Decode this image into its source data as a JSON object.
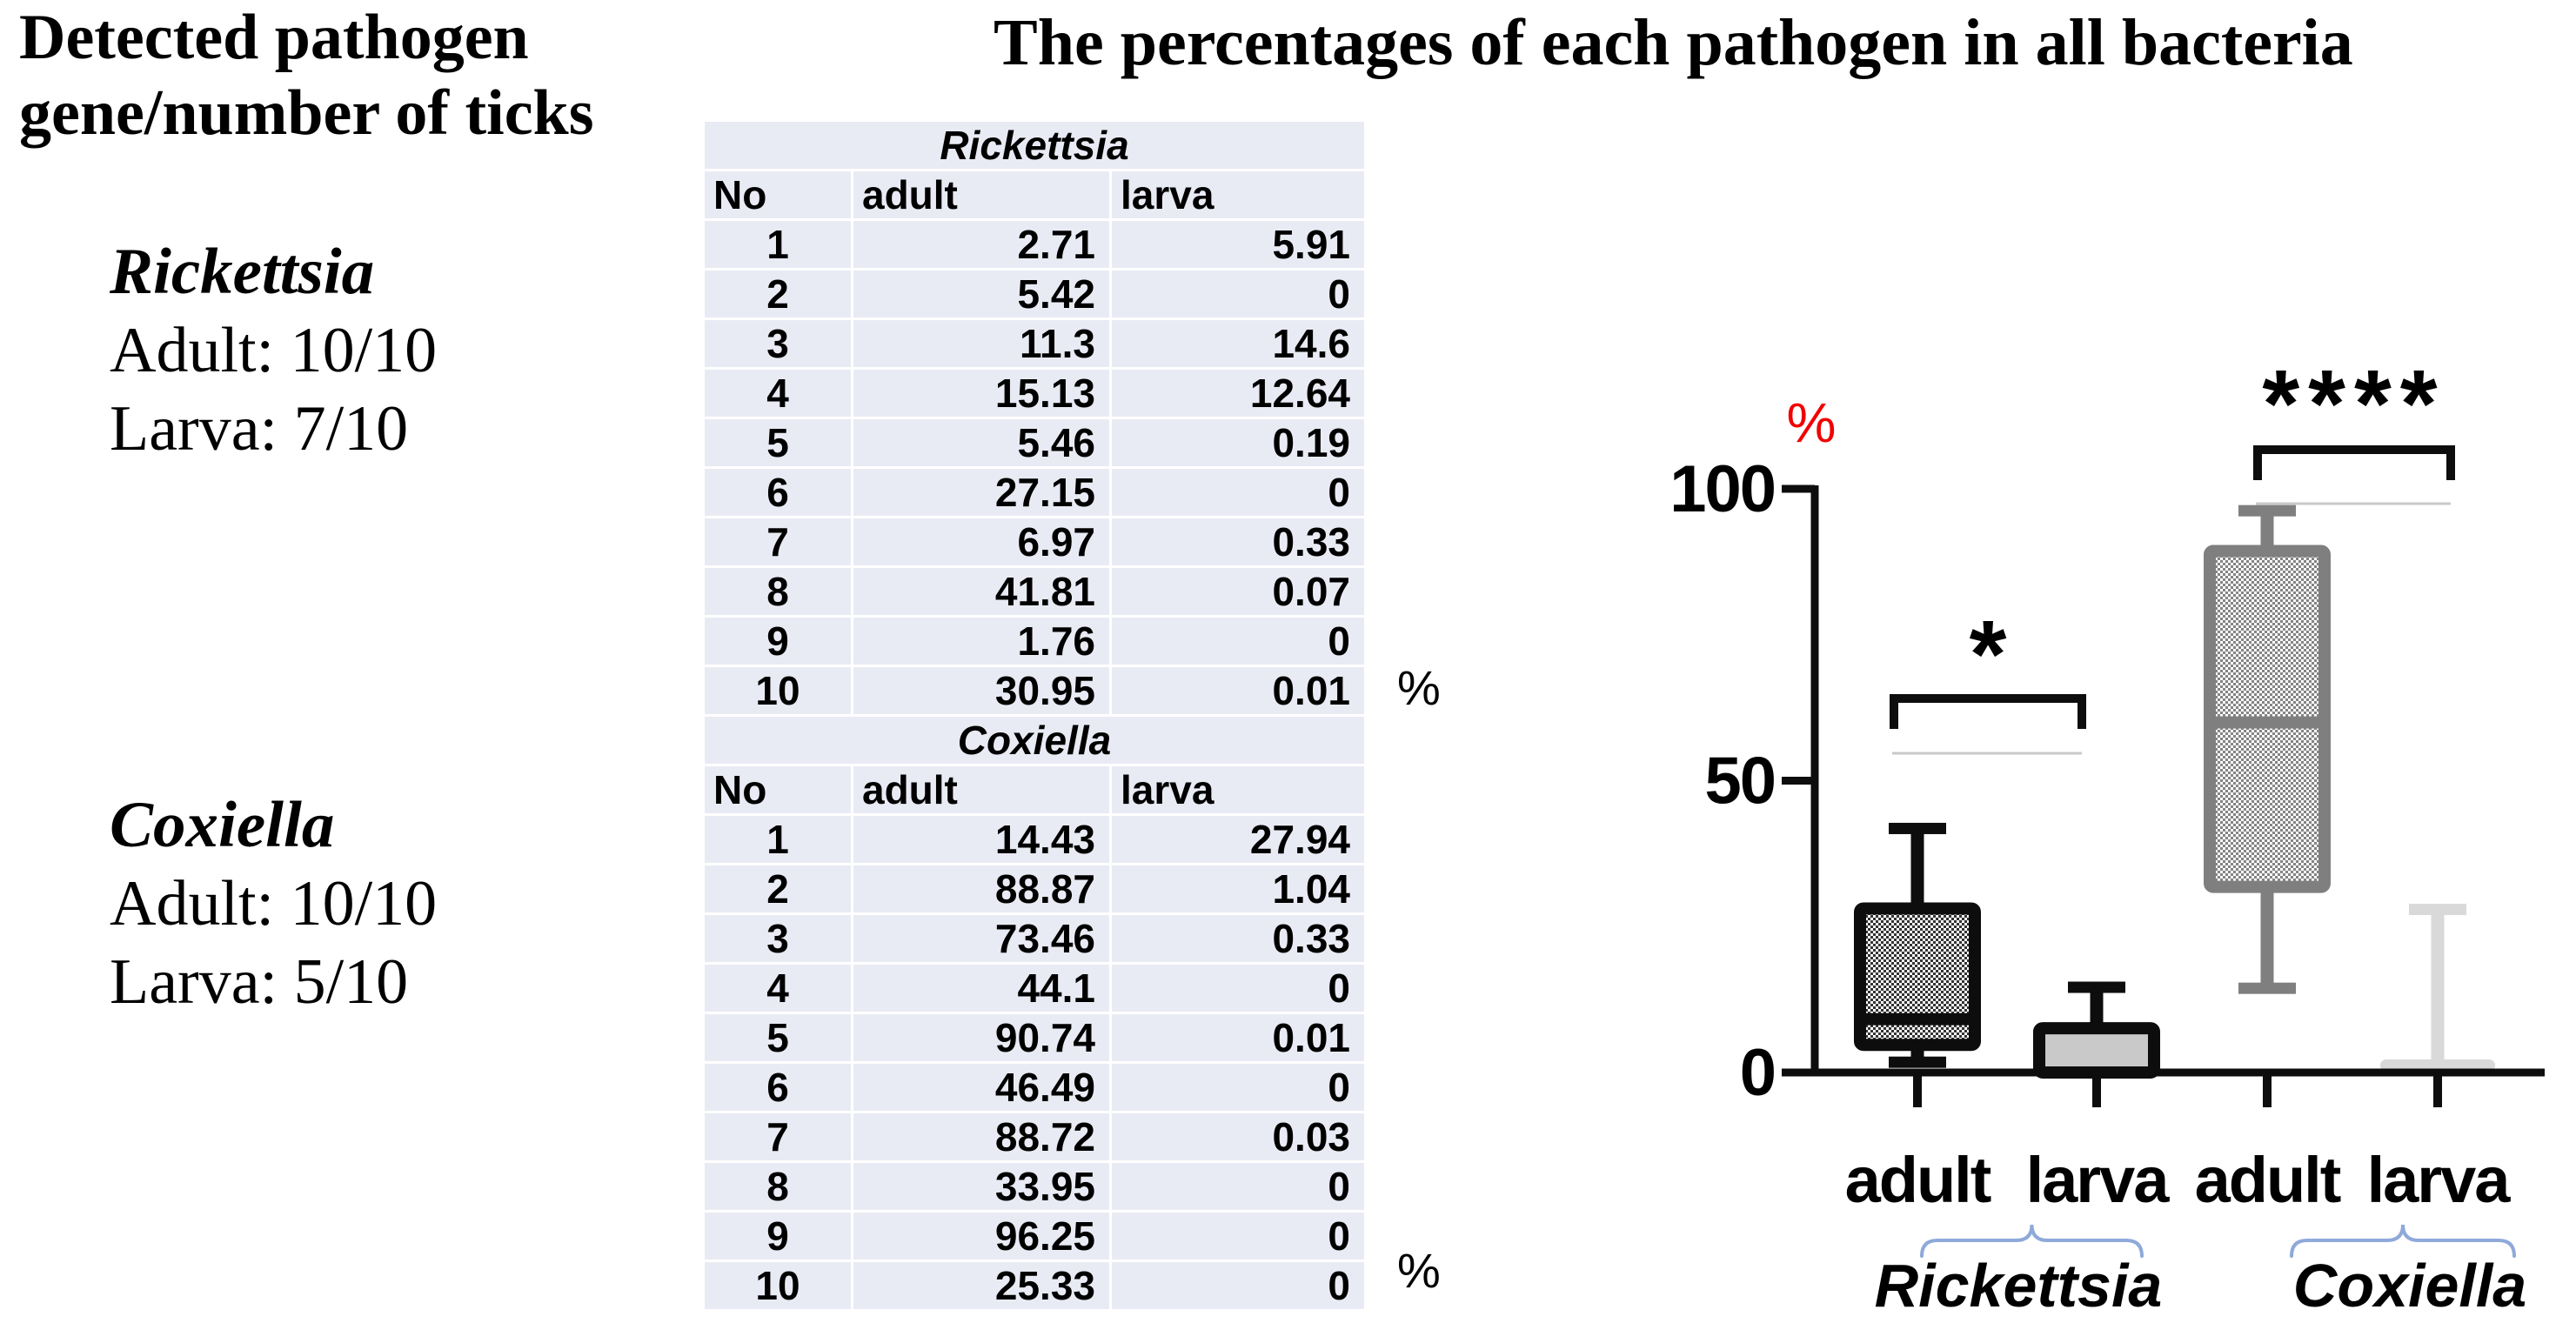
{
  "left_panel": {
    "title": "Detected pathogen\ngene/number of ticks",
    "groups": [
      {
        "name": "Rickettsia",
        "adult_line": "Adult: 10/10",
        "larva_line": "Larva: 7/10"
      },
      {
        "name": "Coxiella",
        "adult_line": "Adult: 10/10",
        "larva_line": "Larva: 5/10"
      }
    ]
  },
  "center_title": "The percentages of each pathogen in all bacteria",
  "table_unit_signs": {
    "rickettsia": "%",
    "coxiella": "%"
  },
  "tables": [
    {
      "title": "Rickettsia",
      "columns": [
        "No",
        "adult",
        "larva"
      ],
      "rows": [
        [
          "1",
          "2.71",
          "5.91"
        ],
        [
          "2",
          "5.42",
          "0"
        ],
        [
          "3",
          "11.3",
          "14.6"
        ],
        [
          "4",
          "15.13",
          "12.64"
        ],
        [
          "5",
          "5.46",
          "0.19"
        ],
        [
          "6",
          "27.15",
          "0"
        ],
        [
          "7",
          "6.97",
          "0.33"
        ],
        [
          "8",
          "41.81",
          "0.07"
        ],
        [
          "9",
          "1.76",
          "0"
        ],
        [
          "10",
          "30.95",
          "0.01"
        ]
      ]
    },
    {
      "title": "Coxiella",
      "columns": [
        "No",
        "adult",
        "larva"
      ],
      "rows": [
        [
          "1",
          "14.43",
          "27.94"
        ],
        [
          "2",
          "88.87",
          "1.04"
        ],
        [
          "3",
          "73.46",
          "0.33"
        ],
        [
          "4",
          "44.1",
          "0"
        ],
        [
          "5",
          "90.74",
          "0.01"
        ],
        [
          "6",
          "46.49",
          "0"
        ],
        [
          "7",
          "88.72",
          "0.03"
        ],
        [
          "8",
          "33.95",
          "0"
        ],
        [
          "9",
          "96.25",
          "0"
        ],
        [
          "10",
          "25.33",
          "0"
        ]
      ]
    }
  ],
  "colors": {
    "accent_red": "#f10000",
    "table_row_bg": "#e9ebf4",
    "brace_blue": "#8fa9da",
    "faint_line": "#c9c9c9",
    "axis_black": "#0d0d0d"
  },
  "chart_data": {
    "type": "boxplot",
    "title": "",
    "ylabel": "%",
    "ylim": [
      0,
      100
    ],
    "yticks": [
      "0",
      "50",
      "100"
    ],
    "categories": [
      "adult",
      "larva",
      "adult",
      "larva"
    ],
    "groups": [
      "Rickettsia",
      "Coxiella"
    ],
    "legend_position": "none",
    "grid": false,
    "series": [
      {
        "group": "Rickettsia",
        "stage": "adult",
        "values": [
          2.71,
          5.42,
          11.3,
          15.13,
          5.46,
          27.15,
          6.97,
          41.81,
          1.76,
          30.95
        ],
        "box": {
          "min": 1.76,
          "q1": 4.74,
          "median": 9.14,
          "q3": 28.1,
          "max": 41.81
        },
        "style": {
          "stroke": "#0d0d0d",
          "fill": "#ffffff",
          "dot": "#333333",
          "whisker": "#0d0d0d",
          "median_line": true,
          "flat": false
        }
      },
      {
        "group": "Rickettsia",
        "stage": "larva",
        "values": [
          5.91,
          0,
          14.6,
          12.64,
          0.19,
          0,
          0.33,
          0.07,
          0,
          0.01
        ],
        "box": {
          "min": 0,
          "q1": 0,
          "median": 0.13,
          "q3": 7.59,
          "max": 14.6
        },
        "style": {
          "stroke": "#0d0d0d",
          "fill": "#c9c9c9",
          "dot": null,
          "whisker": "#0d0d0d",
          "median_line": false,
          "flat": false
        }
      },
      {
        "group": "Coxiella",
        "stage": "adult",
        "values": [
          14.43,
          88.87,
          73.46,
          44.1,
          90.74,
          46.49,
          88.72,
          33.95,
          96.25,
          25.33
        ],
        "box": {
          "min": 14.43,
          "q1": 31.8,
          "median": 59.98,
          "q3": 89.34,
          "max": 96.25
        },
        "style": {
          "stroke": "#7f7f7f",
          "fill": "#ffffff",
          "dot": "#848484",
          "whisker": "#7f7f7f",
          "median_line": true,
          "flat": false
        }
      },
      {
        "group": "Coxiella",
        "stage": "larva",
        "values": [
          27.94,
          1.04,
          0.33,
          0,
          0.01,
          0,
          0.03,
          0,
          0,
          0
        ],
        "box": {
          "min": 0,
          "q1": 0,
          "median": 0.01,
          "q3": 0.51,
          "max": 27.94
        },
        "style": {
          "stroke": "#d9d9d9",
          "fill": "#d9d9d9",
          "dot": null,
          "whisker": "#d9d9d9",
          "median_line": false,
          "flat": true
        }
      }
    ],
    "significance": [
      {
        "label": "*",
        "from": 0,
        "to": 1
      },
      {
        "label": "****",
        "from": 2,
        "to": 3
      }
    ]
  }
}
